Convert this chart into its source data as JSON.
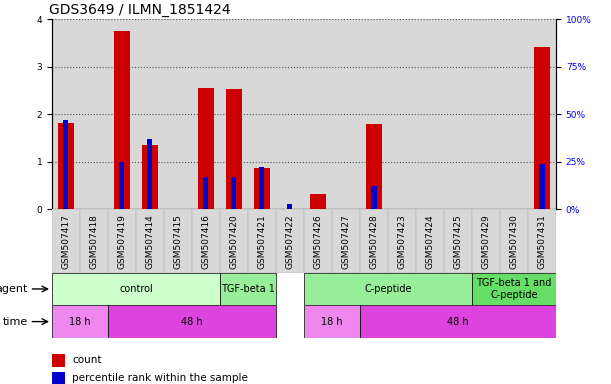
{
  "title": "GDS3649 / ILMN_1851424",
  "samples": [
    "GSM507417",
    "GSM507418",
    "GSM507419",
    "GSM507414",
    "GSM507415",
    "GSM507416",
    "GSM507420",
    "GSM507421",
    "GSM507422",
    "GSM507426",
    "GSM507427",
    "GSM507428",
    "GSM507423",
    "GSM507424",
    "GSM507425",
    "GSM507429",
    "GSM507430",
    "GSM507431"
  ],
  "count_values": [
    1.82,
    0.0,
    3.76,
    1.35,
    0.0,
    2.55,
    2.54,
    0.87,
    0.0,
    0.32,
    0.0,
    1.8,
    0.0,
    0.0,
    0.0,
    0.0,
    0.0,
    3.42
  ],
  "percentile_values_pct": [
    47,
    0,
    25,
    37,
    0,
    17,
    17,
    22,
    3,
    0,
    0,
    12,
    0,
    0,
    0,
    0,
    0,
    24
  ],
  "ylim_left": [
    0,
    4
  ],
  "ylim_right": [
    0,
    100
  ],
  "yticks_left": [
    0,
    1,
    2,
    3,
    4
  ],
  "yticks_right": [
    0,
    25,
    50,
    75,
    100
  ],
  "ytick_right_labels": [
    "0%",
    "25%",
    "50%",
    "75%",
    "100%"
  ],
  "bar_color_count": "#cc0000",
  "bar_color_pct": "#0000cc",
  "agent_groups": [
    {
      "label": "control",
      "start": 0,
      "end": 5,
      "color": "#ccffcc"
    },
    {
      "label": "TGF-beta 1",
      "start": 6,
      "end": 7,
      "color": "#99ee99"
    },
    {
      "label": "C-peptide",
      "start": 9,
      "end": 14,
      "color": "#99ee99"
    },
    {
      "label": "TGF-beta 1 and\nC-peptide",
      "start": 15,
      "end": 17,
      "color": "#66dd66"
    }
  ],
  "time_groups": [
    {
      "label": "18 h",
      "start": 0,
      "end": 1,
      "color": "#ee88ee"
    },
    {
      "label": "48 h",
      "start": 2,
      "end": 7,
      "color": "#dd44dd"
    },
    {
      "label": "18 h",
      "start": 9,
      "end": 10,
      "color": "#ee88ee"
    },
    {
      "label": "48 h",
      "start": 11,
      "end": 17,
      "color": "#dd44dd"
    }
  ],
  "agent_label": "agent",
  "time_label": "time",
  "legend_count_label": "count",
  "legend_pct_label": "percentile rank within the sample",
  "tick_fontsize": 6.5,
  "label_fontsize": 8,
  "title_fontsize": 10
}
